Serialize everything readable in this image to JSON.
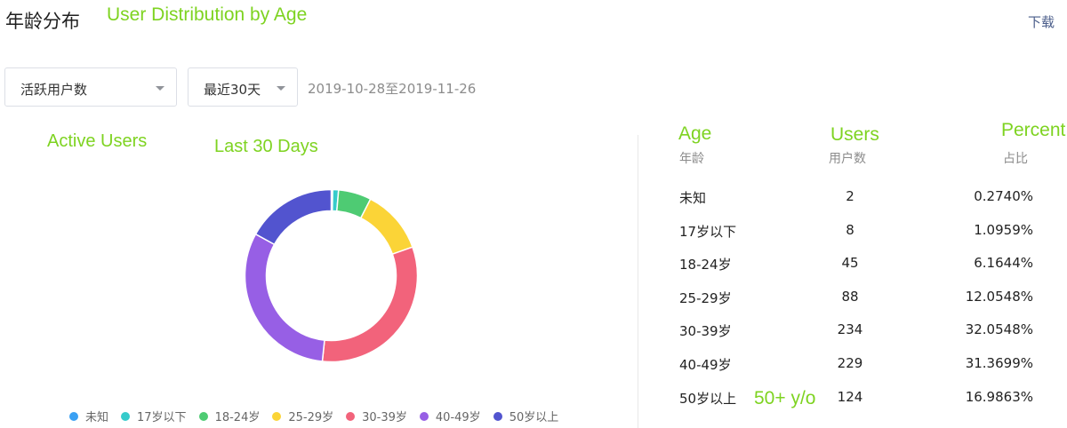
{
  "header": {
    "title": "年龄分布",
    "annotation": "User Distribution by Age",
    "download_label": "下载"
  },
  "filters": {
    "metric_value": "活跃用户数",
    "range_value": "最近30天",
    "date_range": "2019-10-28至2019-11-26",
    "metric_annotation": "Active Users",
    "range_annotation": "Last 30 Days"
  },
  "table": {
    "headers": {
      "age": "年龄",
      "users": "用户数",
      "percent": "占比"
    },
    "header_annotations": {
      "age": "Age",
      "users": "Users",
      "percent": "Percent"
    },
    "rows": [
      {
        "age": "未知",
        "users": "2",
        "percent": "0.2740%"
      },
      {
        "age": "17岁以下",
        "users": "8",
        "percent": "1.0959%"
      },
      {
        "age": "18-24岁",
        "users": "45",
        "percent": "6.1644%"
      },
      {
        "age": "25-29岁",
        "users": "88",
        "percent": "12.0548%"
      },
      {
        "age": "30-39岁",
        "users": "234",
        "percent": "32.0548%"
      },
      {
        "age": "40-49岁",
        "users": "229",
        "percent": "31.3699%"
      },
      {
        "age": "50岁以上",
        "users": "124",
        "percent": "16.9863%"
      }
    ],
    "last_row_annotation": "50+ y/o"
  },
  "legend": [
    {
      "label": "未知",
      "color": "#3aa0f3"
    },
    {
      "label": "17岁以下",
      "color": "#36cbcb"
    },
    {
      "label": "18-24岁",
      "color": "#4ecb73"
    },
    {
      "label": "25-29岁",
      "color": "#fbd437"
    },
    {
      "label": "30-39岁",
      "color": "#f2637b"
    },
    {
      "label": "40-49岁",
      "color": "#975fe5"
    },
    {
      "label": "50岁以上",
      "color": "#5254cf"
    }
  ],
  "chart_data": {
    "type": "pie",
    "donut": true,
    "categories": [
      "未知",
      "17岁以下",
      "18-24岁",
      "25-29岁",
      "30-39岁",
      "40-49岁",
      "50岁以上"
    ],
    "values": [
      2,
      8,
      45,
      88,
      234,
      229,
      124
    ],
    "colors": [
      "#3aa0f3",
      "#36cbcb",
      "#4ecb73",
      "#fbd437",
      "#f2637b",
      "#975fe5",
      "#5254cf"
    ],
    "legend_position": "bottom"
  }
}
